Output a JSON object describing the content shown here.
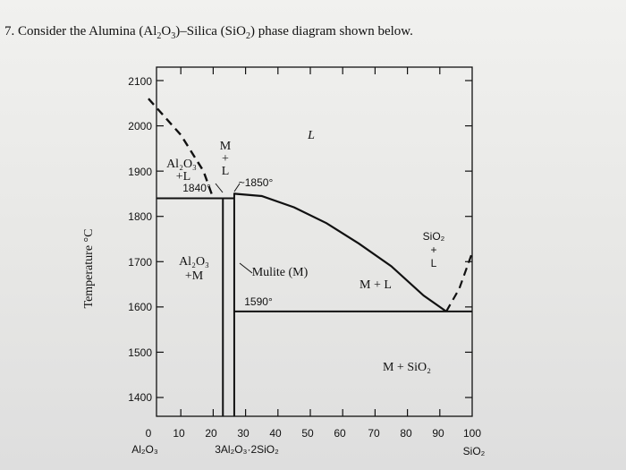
{
  "question": {
    "number": "7.",
    "text_before": "Consider the Alumina (Al",
    "sub1": "2",
    "mid1": "O",
    "sub2": "3",
    "mid2": ")–Silica (SiO",
    "sub3": "2",
    "text_after": ") phase diagram shown below."
  },
  "chart_data": {
    "type": "phase-diagram",
    "ylabel": "Temperature °C",
    "ylim": [
      1350,
      2120
    ],
    "xlim": [
      0,
      100
    ],
    "y_ticks": [
      "2100",
      "2000",
      "1900",
      "1800",
      "1700",
      "1600",
      "1500",
      "1400"
    ],
    "x_ticks": [
      "0",
      "10",
      "20",
      "30",
      "40",
      "50",
      "60",
      "70",
      "80",
      "90",
      "100"
    ],
    "x_end_labels": {
      "left": "Al₂O₃",
      "right": "SiO₂",
      "compound": "3Al₂O₃·2SiO₂"
    },
    "regions": {
      "L": "L",
      "mullite": "Mulite (M)",
      "alumina_mullite": [
        "Al₂O₃",
        "+M"
      ],
      "alumina_liquid": [
        "Al₂O₃",
        "+L"
      ],
      "m_plus_l_vertical": [
        "M",
        "+",
        "L"
      ],
      "m_plus_l": "M + L",
      "sio2_plus_l": [
        "SiO₂",
        "+",
        "L"
      ],
      "m_plus_sio2": "M + SiO₂"
    },
    "annotations": {
      "eutectic_1840": "1840°",
      "melting_1850": "~1850°",
      "eutectic_1590": "1590°"
    },
    "liquidus_curve": [
      [
        26.5,
        1850
      ],
      [
        35,
        1845
      ],
      [
        45,
        1820
      ],
      [
        55,
        1785
      ],
      [
        65,
        1740
      ],
      [
        75,
        1690
      ],
      [
        85,
        1625
      ],
      [
        92,
        1590
      ]
    ],
    "alumina_liquidus_dashed": [
      [
        0,
        2060
      ],
      [
        10,
        1980
      ],
      [
        17,
        1900
      ],
      [
        20,
        1840
      ]
    ],
    "sio2_liquidus_dashed": [
      [
        92,
        1590
      ],
      [
        96,
        1640
      ],
      [
        100,
        1720
      ]
    ],
    "eutectic_lines": {
      "upper_T": 1840,
      "upper_x": [
        0,
        26.5
      ],
      "lower_T": 1590,
      "lower_x": [
        26.5,
        100
      ]
    },
    "mullite_bounds": {
      "left_x": 23,
      "right_x": 26.5
    }
  }
}
